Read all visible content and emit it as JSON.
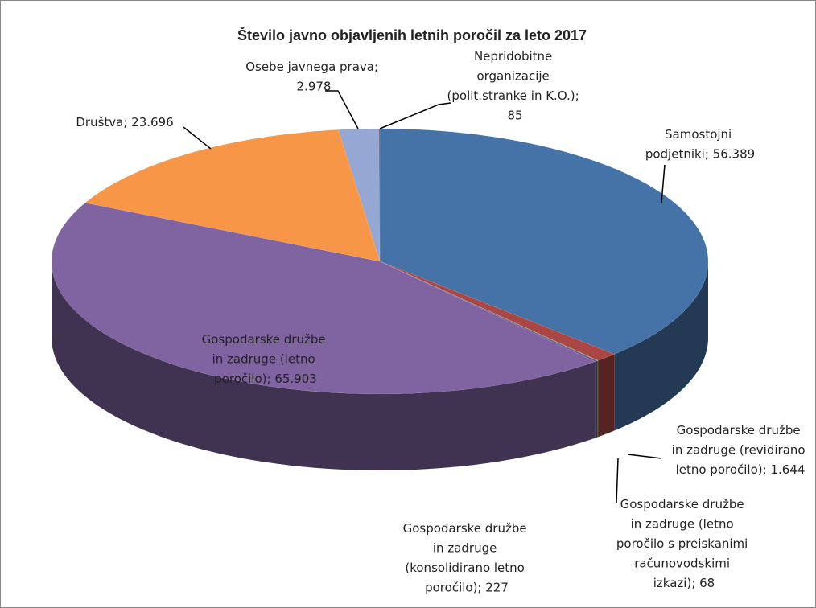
{
  "chart_data": {
    "type": "pie",
    "style": "3d",
    "title": "Število javno objavljenih letnih poročil za leto 2017",
    "categories": [
      "Samostojni podjetniki",
      "Gospodarske družbe in zadruge (revidirano letno poročilo)",
      "Gospodarske družbe in zadruge (letno poročilo s preiskanimi računovodskimi izkazi)",
      "Gospodarske družbe in zadruge (konsolidirano letno poročilo)",
      "Gospodarske družbe in zadruge (letno poročilo)",
      "Društva",
      "Osebe javnega prava",
      "Nepridobitne organizacije (polit.stranke in K.O.)"
    ],
    "values": [
      56389,
      1644,
      68,
      227,
      65903,
      23696,
      2978,
      85
    ],
    "value_labels": [
      "Samostojni\npodjetniki; 56.389",
      "Gospodarske družbe\nin zadruge (revidirano\nletno poročilo); 1.644",
      "Gospodarske družbe\nin zadruge (letno\nporočilo s preiskanimi\nračunovodskimi\nizkazi); 68",
      "Gospodarske družbe\nin zadruge\n(konsolidirano letno\nporočilo); 227",
      "Gospodarske družbe\nin zadruge (letno\nporočilo); 65.903",
      "Društva; 23.696",
      "Osebe javnega prava;\n2.978",
      "Nepridobitne\norganizacije\n(polit.stranke in K.O.);\n85"
    ],
    "colors": [
      "#4572a7",
      "#aa4643",
      "#89a54e",
      "#71588f",
      "#8064a2",
      "#f79646",
      "#95a8d4",
      "#c0504d"
    ]
  }
}
